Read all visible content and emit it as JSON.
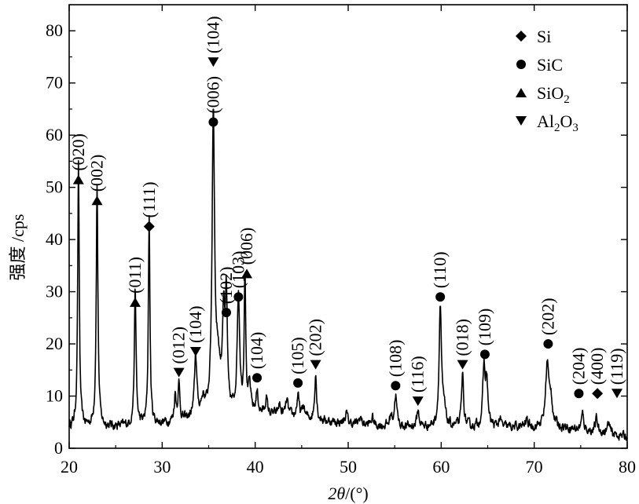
{
  "chart_data": {
    "type": "line",
    "xlabel_parts": [
      "2",
      "θ",
      "/(°)"
    ],
    "ylabel": "强度 /cps",
    "xlim": [
      20,
      80
    ],
    "ylim": [
      0,
      85
    ],
    "xticks": [
      20,
      30,
      40,
      50,
      60,
      70,
      80
    ],
    "yticks": [
      0,
      10,
      20,
      30,
      40,
      50,
      60,
      70,
      80
    ],
    "grid": false,
    "legend_position": "top-right",
    "legend": [
      {
        "marker": "diamond",
        "label": "Si"
      },
      {
        "marker": "circle",
        "label": "SiC"
      },
      {
        "marker": "triangle-up",
        "label_main": "SiO",
        "label_sub": "2"
      },
      {
        "marker": "triangle-down",
        "label_parts": [
          [
            "Al",
            false
          ],
          [
            "2",
            true
          ],
          [
            "O",
            false
          ],
          [
            "3",
            true
          ]
        ]
      }
    ],
    "peaks": [
      {
        "x": 21.0,
        "y": 50,
        "w": 0.1
      },
      {
        "x": 23.0,
        "y": 46,
        "w": 0.11
      },
      {
        "x": 27.1,
        "y": 26,
        "w": 0.11
      },
      {
        "x": 28.6,
        "y": 40,
        "w": 0.1
      },
      {
        "x": 31.4,
        "y": 5,
        "w": 0.12
      },
      {
        "x": 31.8,
        "y": 7,
        "w": 0.12
      },
      {
        "x": 33.6,
        "y": 12,
        "w": 0.15
      },
      {
        "x": 34.4,
        "y": 3,
        "w": 0.25
      },
      {
        "x": 35.5,
        "y": 57,
        "w": 0.16
      },
      {
        "x": 36.0,
        "y": 9,
        "w": 0.3
      },
      {
        "x": 36.6,
        "y": 18,
        "w": 0.15
      },
      {
        "x": 36.9,
        "y": 21,
        "w": 0.12
      },
      {
        "x": 38.2,
        "y": 23,
        "w": 0.16
      },
      {
        "x": 38.9,
        "y": 27,
        "w": 0.1
      },
      {
        "x": 39.4,
        "y": 5,
        "w": 0.15
      },
      {
        "x": 40.2,
        "y": 4,
        "w": 0.14
      },
      {
        "x": 41.2,
        "y": 3,
        "w": 0.14
      },
      {
        "x": 42.6,
        "y": 2,
        "w": 0.15
      },
      {
        "x": 43.4,
        "y": 3,
        "w": 0.15
      },
      {
        "x": 44.6,
        "y": 4,
        "w": 0.15
      },
      {
        "x": 45.2,
        "y": 2,
        "w": 0.15
      },
      {
        "x": 46.5,
        "y": 9,
        "w": 0.12
      },
      {
        "x": 49.8,
        "y": 2,
        "w": 0.15
      },
      {
        "x": 51.3,
        "y": 1.5,
        "w": 0.15
      },
      {
        "x": 52.6,
        "y": 1.5,
        "w": 0.15
      },
      {
        "x": 54.6,
        "y": 2,
        "w": 0.15
      },
      {
        "x": 55.1,
        "y": 6,
        "w": 0.15
      },
      {
        "x": 57.5,
        "y": 3,
        "w": 0.15
      },
      {
        "x": 59.9,
        "y": 23,
        "w": 0.15
      },
      {
        "x": 60.3,
        "y": 3,
        "w": 0.2
      },
      {
        "x": 62.3,
        "y": 10,
        "w": 0.13
      },
      {
        "x": 64.6,
        "y": 11,
        "w": 0.15
      },
      {
        "x": 64.9,
        "y": 8,
        "w": 0.15
      },
      {
        "x": 66.3,
        "y": 1.5,
        "w": 0.15
      },
      {
        "x": 69.2,
        "y": 1.5,
        "w": 0.15
      },
      {
        "x": 71.4,
        "y": 12,
        "w": 0.2
      },
      {
        "x": 71.8,
        "y": 5,
        "w": 0.2
      },
      {
        "x": 75.2,
        "y": 3,
        "w": 0.15
      },
      {
        "x": 76.7,
        "y": 2.5,
        "w": 0.15
      },
      {
        "x": 78.0,
        "y": 2,
        "w": 0.15
      }
    ],
    "annotations": [
      {
        "marker": "triangle-up",
        "x": 21.0,
        "y": 51.5,
        "labels": [
          "(020)"
        ]
      },
      {
        "marker": "triangle-up",
        "x": 23.0,
        "y": 47.5,
        "labels": [
          "(002)"
        ]
      },
      {
        "marker": "triangle-up",
        "x": 27.1,
        "y": 28.0,
        "labels": [
          "(011)"
        ]
      },
      {
        "marker": "diamond",
        "x": 28.6,
        "y": 42.5,
        "labels": [
          "(111)"
        ]
      },
      {
        "marker": "triangle-down",
        "x": 31.8,
        "y": 14.5,
        "labels": [
          "(012)"
        ]
      },
      {
        "marker": "triangle-down",
        "x": 33.6,
        "y": 18.5,
        "labels": [
          "(104)"
        ]
      },
      {
        "marker": "circle",
        "x": 35.5,
        "y": 62.5,
        "labels": [
          "(006)"
        ]
      },
      {
        "marker": "triangle-down",
        "x": 35.5,
        "y": 74.0,
        "labels": [
          "(104)"
        ]
      },
      {
        "marker": "circle",
        "x": 36.9,
        "y": 26.0,
        "labels": [
          "(102)"
        ]
      },
      {
        "marker": "circle",
        "x": 38.2,
        "y": 29.0,
        "labels": [
          "(103)"
        ]
      },
      {
        "marker": "triangle-up",
        "x": 39.1,
        "y": 33.5,
        "labels": [
          "(006)"
        ]
      },
      {
        "marker": "circle",
        "x": 40.2,
        "y": 13.5,
        "labels": [
          "(104)"
        ]
      },
      {
        "marker": "circle",
        "x": 44.6,
        "y": 12.5,
        "labels": [
          "(105)"
        ]
      },
      {
        "marker": "triangle-down",
        "x": 46.5,
        "y": 16.0,
        "labels": [
          "(202)"
        ]
      },
      {
        "marker": "circle",
        "x": 55.1,
        "y": 12.0,
        "labels": [
          "(108)"
        ]
      },
      {
        "marker": "triangle-down",
        "x": 57.5,
        "y": 9.0,
        "labels": [
          "(116)"
        ]
      },
      {
        "marker": "circle",
        "x": 59.9,
        "y": 29.0,
        "labels": [
          "(110)"
        ]
      },
      {
        "marker": "triangle-down",
        "x": 62.3,
        "y": 16.0,
        "labels": [
          "(018)"
        ]
      },
      {
        "marker": "circle",
        "x": 64.7,
        "y": 18.0,
        "labels": [
          "(109)"
        ]
      },
      {
        "marker": "circle",
        "x": 71.5,
        "y": 20.0,
        "labels": [
          "(202)"
        ]
      },
      {
        "marker": "circle",
        "x": 74.8,
        "y": 10.5,
        "labels": [
          "(204)"
        ]
      },
      {
        "marker": "diamond",
        "x": 76.8,
        "y": 10.5,
        "labels": [
          "(400)"
        ]
      },
      {
        "marker": "triangle-down",
        "x": 78.9,
        "y": 10.5,
        "labels": [
          "(119)"
        ]
      }
    ]
  }
}
